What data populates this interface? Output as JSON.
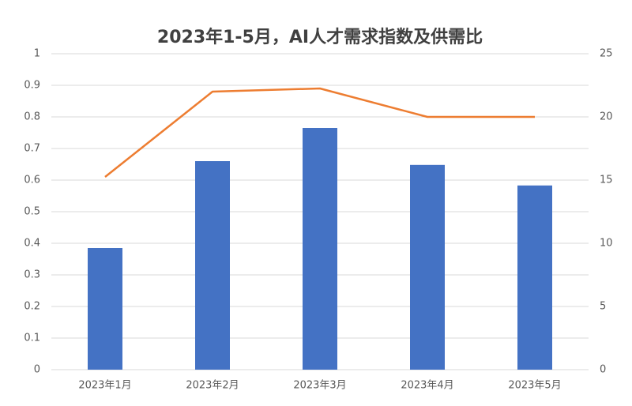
{
  "chart_data": {
    "type": "bar_line",
    "title": "2023年1-5月，AI人才需求指数及供需比",
    "categories": [
      "2023年1月",
      "2023年2月",
      "2023年3月",
      "2023年4月",
      "2023年5月"
    ],
    "series": [
      {
        "type": "bar",
        "color": "#4472c4",
        "values": [
          0.385,
          0.66,
          0.765,
          0.648,
          0.583
        ]
      },
      {
        "type": "line",
        "color": "#ed7d31",
        "axis": "y2",
        "values": [
          15.25,
          22,
          22.25,
          20,
          20
        ]
      }
    ],
    "ylim": [
      0,
      1
    ],
    "yticks": [
      0,
      0.1,
      0.2,
      0.3,
      0.4,
      0.5,
      0.6,
      0.7,
      0.8,
      0.9,
      1
    ],
    "y2lim": [
      0,
      25
    ],
    "y2ticks": [
      0,
      5,
      10,
      15,
      20,
      25
    ],
    "grid": true
  }
}
